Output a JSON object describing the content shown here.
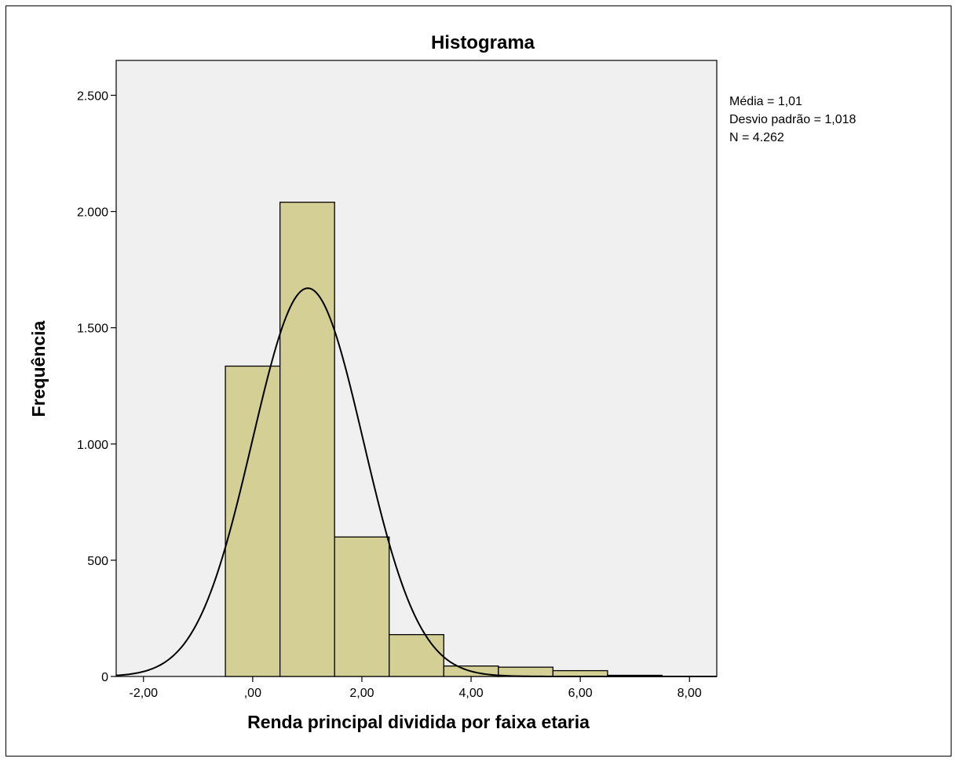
{
  "chart_data": {
    "type": "bar",
    "subtype": "histogram",
    "title": "Histograma",
    "xlabel": "Renda principal dividida por faixa etaria",
    "ylabel": "Frequência",
    "xlim": [
      -2.5,
      8.5
    ],
    "ylim": [
      0,
      2650
    ],
    "x_ticks": [
      {
        "value": -2,
        "label": "-2,00"
      },
      {
        "value": 0,
        "label": ",00"
      },
      {
        "value": 2,
        "label": "2,00"
      },
      {
        "value": 4,
        "label": "4,00"
      },
      {
        "value": 6,
        "label": "6,00"
      },
      {
        "value": 8,
        "label": "8,00"
      }
    ],
    "y_ticks": [
      {
        "value": 0,
        "label": "0"
      },
      {
        "value": 500,
        "label": "500"
      },
      {
        "value": 1000,
        "label": "1.000"
      },
      {
        "value": 1500,
        "label": "1.500"
      },
      {
        "value": 2000,
        "label": "2.000"
      },
      {
        "value": 2500,
        "label": "2.500"
      }
    ],
    "bins": [
      {
        "start": -0.5,
        "end": 0.5,
        "value": 1335
      },
      {
        "start": 0.5,
        "end": 1.5,
        "value": 2040
      },
      {
        "start": 1.5,
        "end": 2.5,
        "value": 600
      },
      {
        "start": 2.5,
        "end": 3.5,
        "value": 180
      },
      {
        "start": 3.5,
        "end": 4.5,
        "value": 45
      },
      {
        "start": 4.5,
        "end": 5.5,
        "value": 40
      },
      {
        "start": 5.5,
        "end": 6.5,
        "value": 25
      },
      {
        "start": 6.5,
        "end": 7.5,
        "value": 5
      }
    ],
    "normal_curve": {
      "mean": 1.01,
      "sd": 1.018,
      "n": 4262,
      "bin_width": 1
    },
    "stats": {
      "mean_label": "Média = 1,01",
      "sd_label": "Desvio padrão = 1,018",
      "n_label": "N = 4.262"
    },
    "colors": {
      "bar_fill": "#d4cf94",
      "bar_stroke": "#000000",
      "plot_bg": "#f0f0f0",
      "curve": "#000000"
    },
    "grid": false,
    "legend": "none"
  }
}
